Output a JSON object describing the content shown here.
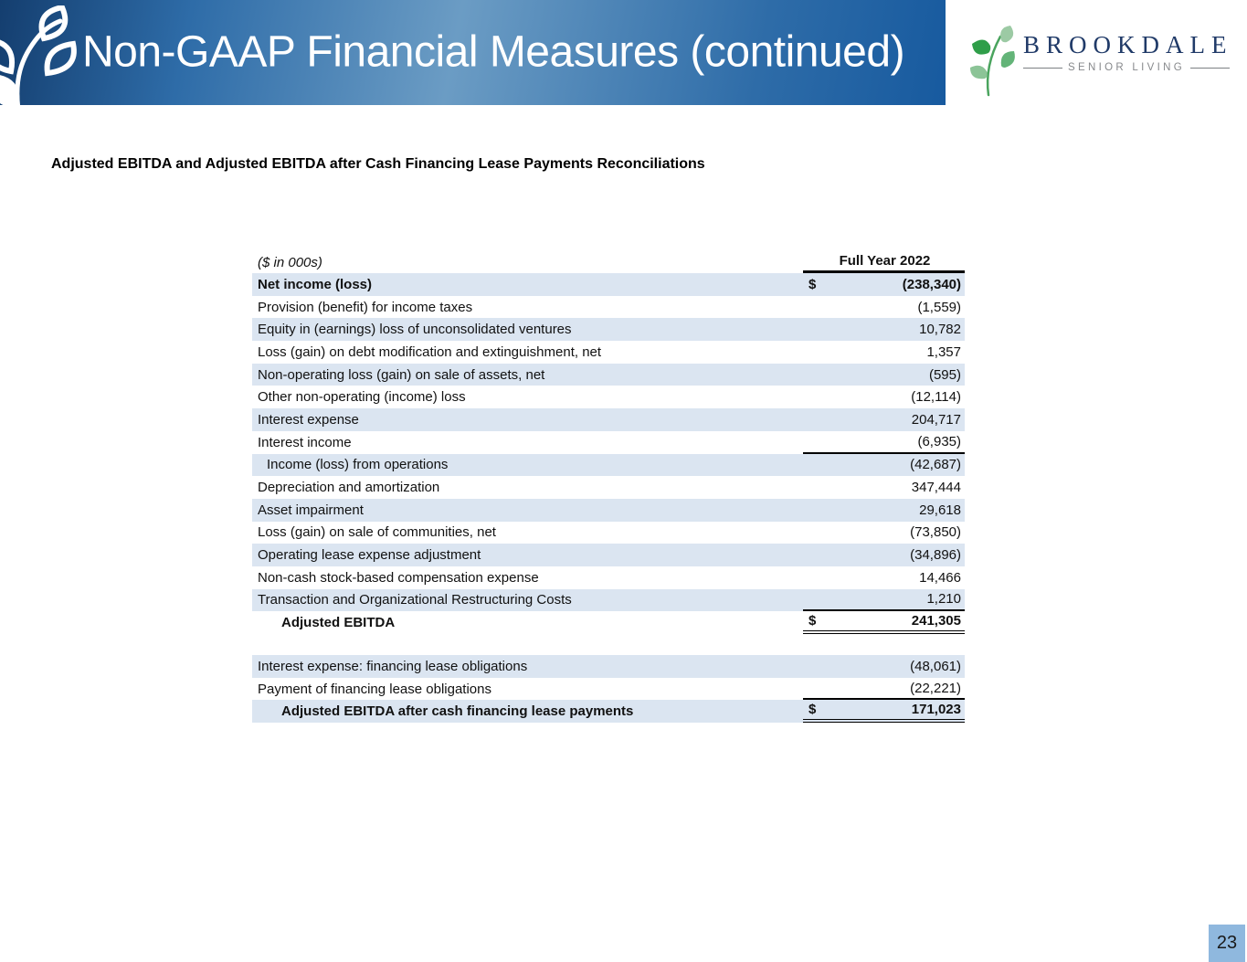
{
  "header": {
    "title": "Non-GAAP Financial Measures (continued)",
    "logo": {
      "name": "BROOKDALE",
      "tagline": "SENIOR LIVING"
    }
  },
  "subtitle": "Adjusted EBITDA and Adjusted EBITDA after Cash Financing Lease Payments Reconciliations",
  "page_number": "23",
  "colors": {
    "banner_dark_blue": "#143e6f",
    "banner_light_blue": "#6b9cc4",
    "row_shade": "#dbe5f1",
    "page_badge_blue": "#8fb8de",
    "logo_navy": "#203a68",
    "logo_green": "#2f9e49",
    "tagline_gray": "#87898c"
  },
  "table": {
    "units_note": "($ in 000s)",
    "column_header": "Full Year 2022",
    "rows": [
      {
        "label": "Net income (loss)",
        "dollar": "$",
        "value": "(238,340)",
        "shaded": true,
        "bold": true
      },
      {
        "label": "Provision (benefit) for income taxes",
        "value": "(1,559)"
      },
      {
        "label": "Equity in (earnings) loss of unconsolidated ventures",
        "value": "10,782",
        "shaded": true
      },
      {
        "label": "Loss (gain) on debt modification and extinguishment, net",
        "value": "1,357"
      },
      {
        "label": "Non-operating loss (gain) on sale of assets, net",
        "value": "(595)",
        "shaded": true
      },
      {
        "label": "Other non-operating (income) loss",
        "value": "(12,114)"
      },
      {
        "label": "Interest expense",
        "value": "204,717",
        "shaded": true
      },
      {
        "label": "Interest income",
        "value": "(6,935)",
        "line": "single"
      },
      {
        "label": "Income (loss) from operations",
        "value": "(42,687)",
        "shaded": true,
        "indent": 1
      },
      {
        "label": "Depreciation and amortization",
        "value": "347,444"
      },
      {
        "label": "Asset impairment",
        "value": "29,618",
        "shaded": true
      },
      {
        "label": "Loss (gain) on sale of communities, net",
        "value": "(73,850)"
      },
      {
        "label": "Operating lease expense adjustment",
        "value": "(34,896)",
        "shaded": true
      },
      {
        "label": "Non-cash stock-based compensation expense",
        "value": "14,466"
      },
      {
        "label": "Transaction and Organizational Restructuring Costs",
        "value": "1,210",
        "shaded": true,
        "line": "single"
      },
      {
        "label": "Adjusted EBITDA",
        "dollar": "$",
        "value": "241,305",
        "bold": true,
        "indent": 2,
        "line": "double"
      },
      {
        "spacer": true
      },
      {
        "label": "Interest expense: financing lease obligations",
        "value": "(48,061)",
        "shaded": true
      },
      {
        "label": "Payment of financing lease obligations",
        "value": "(22,221)",
        "line": "single"
      },
      {
        "label": "Adjusted EBITDA after cash financing lease payments",
        "dollar": "$",
        "value": "171,023",
        "shaded": true,
        "bold": true,
        "indent": 2,
        "line": "double"
      }
    ]
  }
}
